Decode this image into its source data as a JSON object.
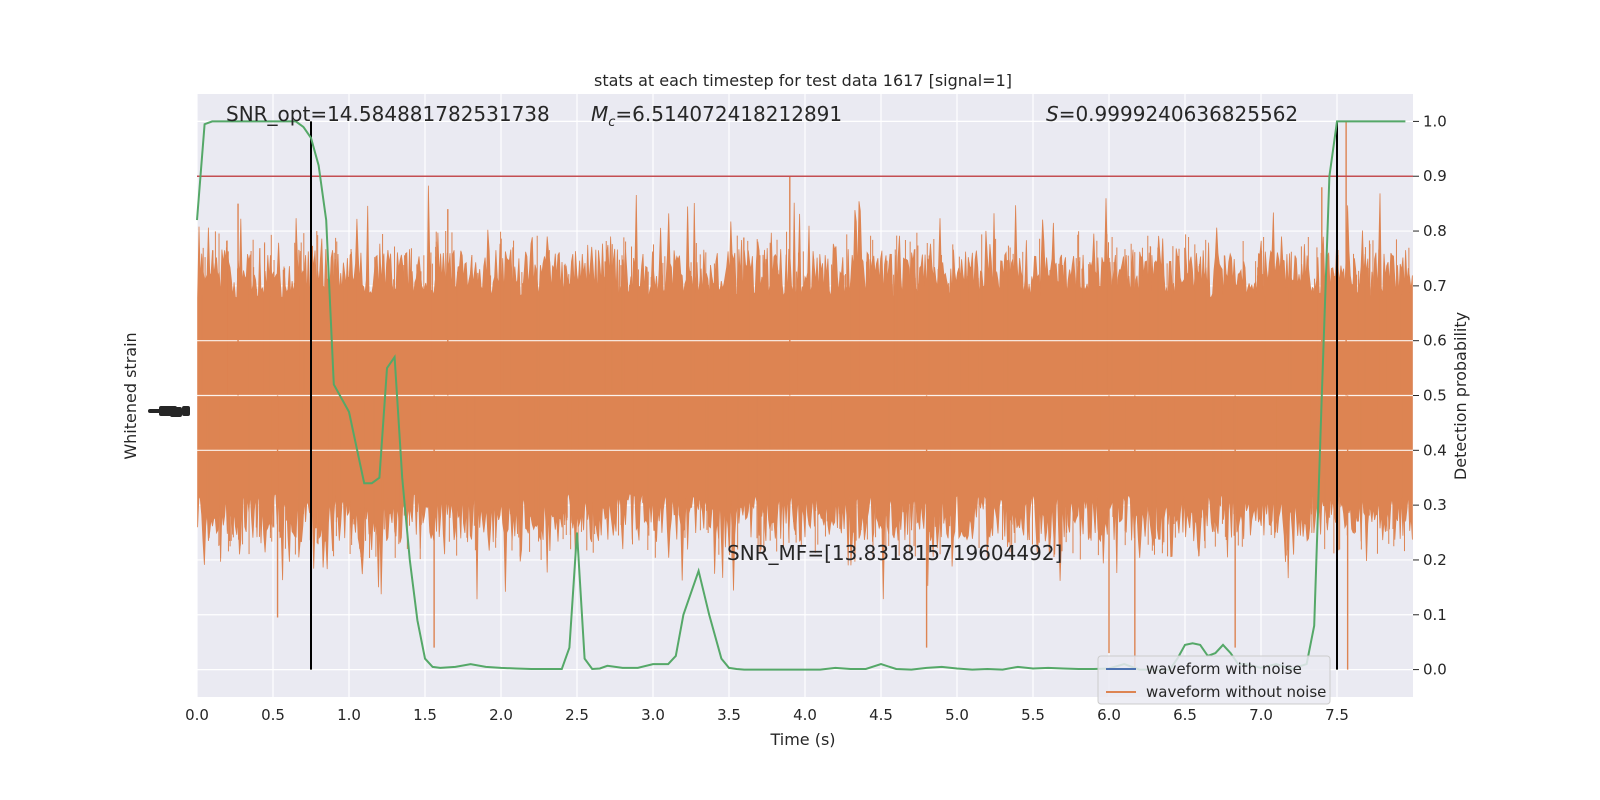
{
  "chart_data": {
    "type": "line",
    "title": "stats at each timestep for test data 1617 [signal=1]",
    "xlabel": "Time (s)",
    "ylabel_left": "Whitened strain",
    "ylabel_right": "Detection probability",
    "xlim": [
      0,
      8
    ],
    "ylim_right": [
      -0.05,
      1.05
    ],
    "x_ticks": [
      "0.0",
      "0.5",
      "1.0",
      "1.5",
      "2.0",
      "2.5",
      "3.0",
      "3.5",
      "4.0",
      "4.5",
      "5.0",
      "5.5",
      "6.0",
      "6.5",
      "7.0",
      "7.5"
    ],
    "y_ticks_right": [
      "0.0",
      "0.1",
      "0.2",
      "0.3",
      "0.4",
      "0.5",
      "0.6",
      "0.7",
      "0.8",
      "0.9",
      "1.0"
    ],
    "grid": true,
    "legend_position": "lower right",
    "annotations": {
      "snr_opt": "SNR_opt=14.584881782531738",
      "mc_symbol": "M",
      "mc_sub": "c",
      "mc_value": "=6.514072418212891",
      "s_symbol": "S",
      "s_value": "=0.9999240636825562",
      "snr_mf": "SNR_MF=[13.831815719604492]"
    },
    "series": [
      {
        "name": "waveform with noise",
        "color": "#4c72b0"
      },
      {
        "name": "waveform without noise",
        "color": "#dd8452"
      }
    ],
    "strain_noise": {
      "color": "#dd8452",
      "typical_band_right_axis": [
        0.3,
        0.7
      ],
      "extreme_peaks_right_axis": [
        [
          3.9,
          0.9
        ],
        [
          7.56,
          1.0
        ],
        [
          0.27,
          0.85
        ],
        [
          1.65,
          0.84
        ],
        [
          7.4,
          0.88
        ],
        [
          0.53,
          0.095
        ],
        [
          1.56,
          0.04
        ],
        [
          4.8,
          0.04
        ],
        [
          6.0,
          0.03
        ],
        [
          6.17,
          0.0
        ],
        [
          6.83,
          0.04
        ],
        [
          7.57,
          0.0
        ]
      ]
    },
    "threshold": {
      "value": 0.9,
      "color": "#c44e52"
    },
    "segment_boundaries": {
      "x": [
        0.75,
        7.5
      ],
      "color": "#000000"
    },
    "detection_probability": {
      "color": "#55a868",
      "x": [
        0.0,
        0.05,
        0.1,
        0.15,
        0.2,
        0.3,
        0.4,
        0.5,
        0.6,
        0.65,
        0.7,
        0.75,
        0.8,
        0.85,
        0.9,
        1.0,
        1.1,
        1.15,
        1.2,
        1.25,
        1.3,
        1.35,
        1.4,
        1.45,
        1.5,
        1.55,
        1.6,
        1.7,
        1.8,
        1.9,
        2.0,
        2.1,
        2.2,
        2.3,
        2.4,
        2.45,
        2.5,
        2.55,
        2.6,
        2.65,
        2.7,
        2.8,
        2.9,
        3.0,
        3.1,
        3.15,
        3.2,
        3.25,
        3.3,
        3.37,
        3.45,
        3.5,
        3.55,
        3.6,
        3.7,
        3.8,
        3.9,
        4.0,
        4.1,
        4.2,
        4.3,
        4.4,
        4.5,
        4.6,
        4.7,
        4.8,
        4.9,
        5.0,
        5.1,
        5.2,
        5.3,
        5.4,
        5.5,
        5.6,
        5.7,
        5.8,
        5.9,
        6.0,
        6.1,
        6.2,
        6.3,
        6.4,
        6.45,
        6.5,
        6.55,
        6.6,
        6.65,
        6.7,
        6.75,
        6.8,
        6.85,
        6.9,
        7.0,
        7.1,
        7.2,
        7.3,
        7.35,
        7.4,
        7.45,
        7.5,
        7.55,
        7.6,
        7.65,
        7.7,
        7.8,
        7.9,
        7.95
      ],
      "y": [
        0.82,
        0.995,
        1.0,
        1.0,
        1.0,
        1.0,
        1.0,
        1.0,
        1.0,
        1.0,
        0.99,
        0.97,
        0.92,
        0.82,
        0.52,
        0.47,
        0.34,
        0.34,
        0.35,
        0.55,
        0.57,
        0.35,
        0.2,
        0.09,
        0.02,
        0.005,
        0.003,
        0.005,
        0.01,
        0.005,
        0.003,
        0.002,
        0.001,
        0.001,
        0.001,
        0.04,
        0.25,
        0.02,
        0.001,
        0.002,
        0.007,
        0.003,
        0.003,
        0.01,
        0.01,
        0.025,
        0.1,
        0.14,
        0.18,
        0.1,
        0.02,
        0.003,
        0.001,
        0.0,
        0.0,
        0.0,
        0.0,
        0.0,
        0.0,
        0.003,
        0.001,
        0.001,
        0.01,
        0.001,
        0.0,
        0.003,
        0.005,
        0.002,
        0.0,
        0.001,
        0.0,
        0.005,
        0.002,
        0.003,
        0.002,
        0.001,
        0.001,
        0.002,
        0.01,
        0.0,
        0.0,
        0.0,
        0.02,
        0.045,
        0.048,
        0.045,
        0.025,
        0.03,
        0.045,
        0.03,
        0.01,
        0.01,
        0.003,
        0.01,
        0.001,
        0.01,
        0.08,
        0.5,
        0.9,
        1.0,
        1.0,
        1.0,
        1.0,
        1.0,
        1.0,
        1.0,
        1.0
      ]
    }
  }
}
